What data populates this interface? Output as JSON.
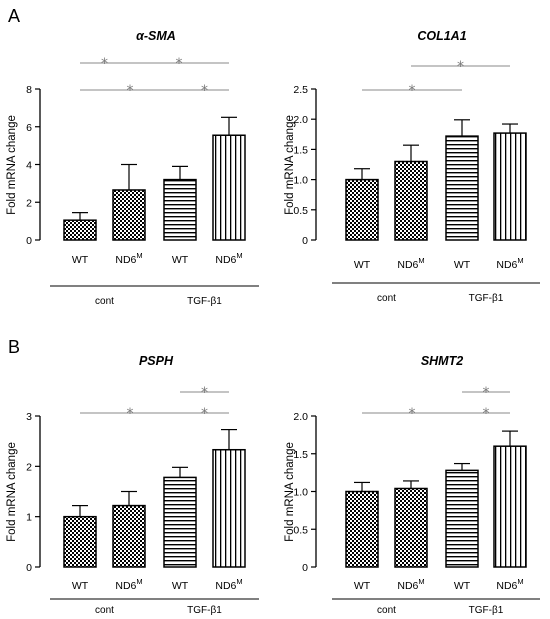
{
  "panel_labels": [
    "A",
    "B"
  ],
  "categories": [
    "WT",
    "ND6M",
    "WT",
    "ND6M"
  ],
  "category_display": [
    {
      "main": "WT",
      "sup": ""
    },
    {
      "main": "ND6",
      "sup": "M"
    },
    {
      "main": "WT",
      "sup": ""
    },
    {
      "main": "ND6",
      "sup": "M"
    }
  ],
  "groups": [
    "cont",
    "TGF-β1"
  ],
  "significance_symbol": "*",
  "colors": {
    "bar_stroke": "#000000",
    "sig_line": "#888888",
    "sig_star": "#777777"
  },
  "chart_data": [
    {
      "type": "bar",
      "title": "α-SMA",
      "ylabel": "Fold mRNA change",
      "ylim": [
        0,
        8
      ],
      "yticks": [
        0,
        2,
        4,
        6,
        8
      ],
      "ytick_labels": [
        "0",
        "2",
        "4",
        "6",
        "8"
      ],
      "categories": [
        "WT",
        "ND6M",
        "WT",
        "ND6M"
      ],
      "values": [
        1.05,
        2.65,
        3.2,
        5.55
      ],
      "errors": [
        0.4,
        1.35,
        0.7,
        0.95
      ],
      "patterns": [
        "checker",
        "checker",
        "hlines",
        "vlines"
      ],
      "significance": [
        {
          "from": 0,
          "to": 1,
          "level": 2,
          "label": "*"
        },
        {
          "from": 1,
          "to": 3,
          "level": 2,
          "label": "*"
        },
        {
          "from": 0,
          "to": 2,
          "level": 1,
          "label": "*"
        },
        {
          "from": 2,
          "to": 3,
          "level": 1,
          "label": "*"
        }
      ]
    },
    {
      "type": "bar",
      "title": "COL1A1",
      "ylabel": "Fold mRNA change",
      "ylim": [
        0,
        2.5
      ],
      "yticks": [
        0,
        0.5,
        1.0,
        1.5,
        2.0,
        2.5
      ],
      "ytick_labels": [
        "0",
        "0.5",
        "1.0",
        "1.5",
        "2.0",
        "2.5"
      ],
      "categories": [
        "WT",
        "ND6M",
        "WT",
        "ND6M"
      ],
      "values": [
        1.0,
        1.3,
        1.72,
        1.77
      ],
      "errors": [
        0.18,
        0.27,
        0.27,
        0.15
      ],
      "patterns": [
        "checker",
        "checker",
        "hlines",
        "vlines"
      ],
      "significance": [
        {
          "from": 0,
          "to": 2,
          "level": 1,
          "label": "*"
        },
        {
          "from": 1,
          "to": 3,
          "level": 2,
          "label": "*"
        }
      ]
    },
    {
      "type": "bar",
      "title": "PSPH",
      "ylabel": "Fold mRNA change",
      "ylim": [
        0,
        3
      ],
      "yticks": [
        0,
        1,
        2,
        3
      ],
      "ytick_labels": [
        "0",
        "1",
        "2",
        "3"
      ],
      "categories": [
        "WT",
        "ND6M",
        "WT",
        "ND6M"
      ],
      "values": [
        1.0,
        1.22,
        1.78,
        2.33
      ],
      "errors": [
        0.22,
        0.28,
        0.2,
        0.4
      ],
      "patterns": [
        "checker",
        "checker",
        "hlines",
        "vlines"
      ],
      "significance": [
        {
          "from": 0,
          "to": 2,
          "level": 1,
          "label": "*"
        },
        {
          "from": 2,
          "to": 3,
          "level": 1,
          "label": "*"
        },
        {
          "from": 2,
          "to": 3,
          "level": 2,
          "label": "*"
        }
      ]
    },
    {
      "type": "bar",
      "title": "SHMT2",
      "ylabel": "Fold mRNA change",
      "ylim": [
        0,
        2.0
      ],
      "yticks": [
        0,
        0.5,
        1.0,
        1.5,
        2.0
      ],
      "ytick_labels": [
        "0",
        "0.5",
        "1.0",
        "1.5",
        "2.0"
      ],
      "categories": [
        "WT",
        "ND6M",
        "WT",
        "ND6M"
      ],
      "values": [
        1.0,
        1.04,
        1.28,
        1.6
      ],
      "errors": [
        0.12,
        0.1,
        0.09,
        0.2
      ],
      "patterns": [
        "checker",
        "checker",
        "hlines",
        "vlines"
      ],
      "significance": [
        {
          "from": 0,
          "to": 2,
          "level": 1,
          "label": "*"
        },
        {
          "from": 2,
          "to": 3,
          "level": 1,
          "label": "*"
        },
        {
          "from": 2,
          "to": 3,
          "level": 2,
          "label": "*"
        }
      ]
    }
  ]
}
